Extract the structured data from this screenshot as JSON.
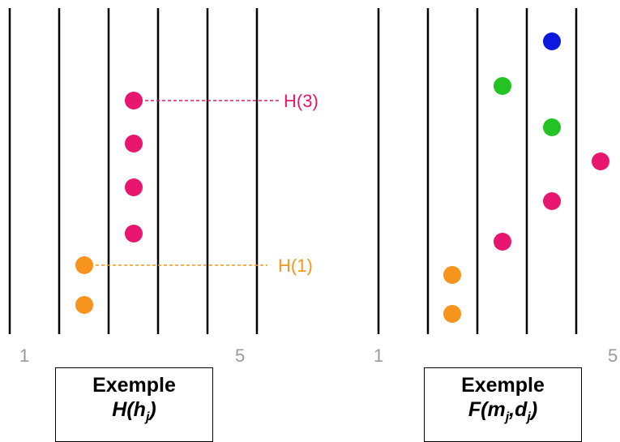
{
  "left_panel": {
    "axis_labels": {
      "start": "1",
      "end": "5"
    },
    "guides": [
      {
        "label": "H(3)",
        "color": "#e8166f"
      },
      {
        "label": "H(1)",
        "color": "#f7941d"
      }
    ],
    "caption": {
      "title": "Exemple",
      "formula_fn": "H(h",
      "formula_sub": "j",
      "formula_close": ")"
    }
  },
  "right_panel": {
    "axis_labels": {
      "start": "1",
      "end": "5"
    },
    "caption": {
      "title": "Exemple",
      "formula_fn": "F(m",
      "formula_sub1": "j",
      "formula_mid": ",d",
      "formula_sub2": "j",
      "formula_close": ")"
    }
  },
  "colors": {
    "orange": "#f7941d",
    "magenta": "#e8166f",
    "green": "#22c322",
    "blue": "#0a18e0",
    "line": "#000000",
    "axis_text": "#9a9a9a"
  }
}
